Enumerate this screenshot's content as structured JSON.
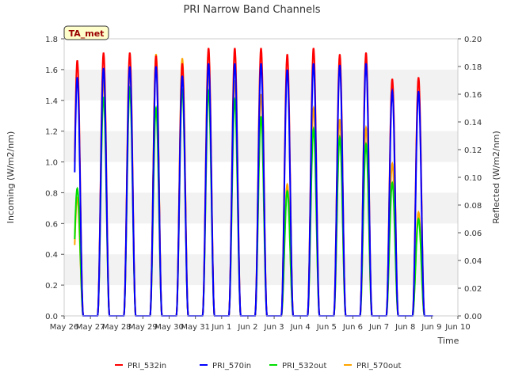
{
  "chart_data": {
    "type": "line",
    "title": "PRI Narrow Band Channels",
    "xlabel": "Time",
    "ylabel_left": "Incoming (W/m2/nm)",
    "ylabel_right": "Reflected (W/m2/nm)",
    "site_label": "TA_met",
    "ylim_left": [
      0,
      1.8
    ],
    "ylim_right": [
      0,
      0.2
    ],
    "yticks_left": [
      "0.0",
      "0.2",
      "0.4",
      "0.6",
      "0.8",
      "1.0",
      "1.2",
      "1.4",
      "1.6",
      "1.8"
    ],
    "yticks_right": [
      "0.00",
      "0.02",
      "0.04",
      "0.06",
      "0.08",
      "0.10",
      "0.12",
      "0.14",
      "0.16",
      "0.18",
      "0.20"
    ],
    "x_tick_labels": [
      "May 26",
      "May 27",
      "May 28",
      "May 29",
      "May 30",
      "May 31",
      "Jun 1",
      "Jun 2",
      "Jun 3",
      "Jun 4",
      "Jun 5",
      "Jun 6",
      "Jun 7",
      "Jun 8",
      "Jun 9",
      "Jun 10"
    ],
    "xlim_days": [
      0,
      15
    ],
    "legend_position": "bottom-center",
    "grid": false,
    "day_peaks": [
      {
        "day": "May 26",
        "PRI_532in": 1.66,
        "PRI_570in": 1.55,
        "PRI_532out": 0.092,
        "PRI_570out": 0.085
      },
      {
        "day": "May 27",
        "PRI_532in": 1.71,
        "PRI_570in": 1.61,
        "PRI_532out": 0.158,
        "PRI_570out": 0.17
      },
      {
        "day": "May 28",
        "PRI_532in": 1.71,
        "PRI_570in": 1.62,
        "PRI_532out": 0.164,
        "PRI_570out": 0.176
      },
      {
        "day": "May 29",
        "PRI_532in": 1.69,
        "PRI_570in": 1.62,
        "PRI_532out": 0.15,
        "PRI_570out": 0.189
      },
      {
        "day": "May 30",
        "PRI_532in": 1.64,
        "PRI_570in": 1.56,
        "PRI_532out": 0.164,
        "PRI_570out": 0.186
      },
      {
        "day": "May 31",
        "PRI_532in": 1.74,
        "PRI_570in": 1.64,
        "PRI_532out": 0.162,
        "PRI_570out": 0.176
      },
      {
        "day": "Jun 1",
        "PRI_532in": 1.74,
        "PRI_570in": 1.64,
        "PRI_532out": 0.156,
        "PRI_570out": 0.17
      },
      {
        "day": "Jun 2",
        "PRI_532in": 1.74,
        "PRI_570in": 1.64,
        "PRI_532out": 0.144,
        "PRI_570out": 0.16
      },
      {
        "day": "Jun 3",
        "PRI_532in": 1.7,
        "PRI_570in": 1.6,
        "PRI_532out": 0.09,
        "PRI_570out": 0.095
      },
      {
        "day": "Jun 4",
        "PRI_532in": 1.74,
        "PRI_570in": 1.64,
        "PRI_532out": 0.135,
        "PRI_570out": 0.15
      },
      {
        "day": "Jun 5",
        "PRI_532in": 1.7,
        "PRI_570in": 1.63,
        "PRI_532out": 0.129,
        "PRI_570out": 0.142
      },
      {
        "day": "Jun 6",
        "PRI_532in": 1.71,
        "PRI_570in": 1.64,
        "PRI_532out": 0.124,
        "PRI_570out": 0.136
      },
      {
        "day": "Jun 7",
        "PRI_532in": 1.54,
        "PRI_570in": 1.46,
        "PRI_532out": 0.096,
        "PRI_570out": 0.11
      },
      {
        "day": "Jun 8",
        "PRI_532in": 1.55,
        "PRI_570in": 1.46,
        "PRI_532out": 0.07,
        "PRI_570out": 0.075
      }
    ],
    "series": [
      {
        "name": "PRI_532in",
        "color": "#ff0000",
        "axis": "left",
        "key": "PRI_532in"
      },
      {
        "name": "PRI_570in",
        "color": "#0000ff",
        "axis": "left",
        "key": "PRI_570in"
      },
      {
        "name": "PRI_532out",
        "color": "#00dd00",
        "axis": "right",
        "key": "PRI_532out"
      },
      {
        "name": "PRI_570out",
        "color": "#ffa500",
        "axis": "right",
        "key": "PRI_570out"
      }
    ]
  }
}
